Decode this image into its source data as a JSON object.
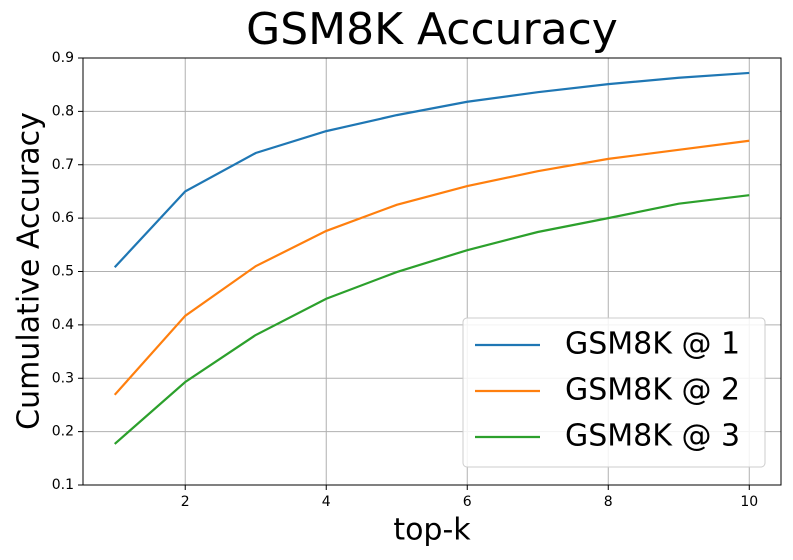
{
  "chart_data": {
    "type": "line",
    "title": "GSM8K Accuracy",
    "x_label": "top-k",
    "y_label": "Cumulative Accuracy",
    "x": [
      1,
      2,
      3,
      4,
      5,
      6,
      7,
      8,
      9,
      10
    ],
    "series": [
      {
        "name": "GSM8K @ 1",
        "color": "#1f77b4",
        "values": [
          0.508,
          0.65,
          0.722,
          0.763,
          0.793,
          0.818,
          0.836,
          0.851,
          0.863,
          0.872
        ]
      },
      {
        "name": "GSM8K @ 2",
        "color": "#ff7f0e",
        "values": [
          0.269,
          0.417,
          0.51,
          0.576,
          0.625,
          0.66,
          0.688,
          0.711,
          0.728,
          0.745
        ]
      },
      {
        "name": "GSM8K @ 3",
        "color": "#2ca02c",
        "values": [
          0.177,
          0.293,
          0.381,
          0.449,
          0.499,
          0.54,
          0.574,
          0.6,
          0.627,
          0.643
        ]
      }
    ],
    "xlim": [
      0.55,
      10.45
    ],
    "xticks": [
      2,
      4,
      6,
      8,
      10
    ],
    "ylim": [
      0.1,
      0.9
    ],
    "yticks": [
      0.1,
      0.2,
      0.3,
      0.4,
      0.5,
      0.6,
      0.7,
      0.8,
      0.9
    ],
    "grid": true,
    "legend": "lower right"
  }
}
